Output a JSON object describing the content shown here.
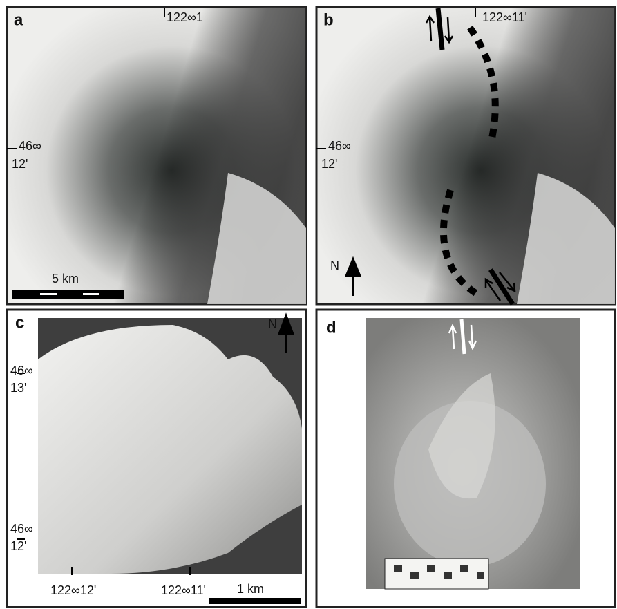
{
  "panels": [
    {
      "label": "a",
      "longitude": "122∞1",
      "latitude": [
        "46∞",
        "12'"
      ],
      "scale": "5 km"
    },
    {
      "label": "b",
      "longitude": "122∞11'",
      "latitude": [
        "46∞",
        "12'"
      ],
      "north": "N"
    },
    {
      "label": "c",
      "north": "N",
      "latitudes": [
        [
          "46∞",
          "13'"
        ],
        [
          "46∞",
          "12'"
        ]
      ],
      "longitudes": [
        "122∞12'",
        "122∞11'"
      ],
      "scale": "1 km"
    },
    {
      "label": "d"
    }
  ]
}
